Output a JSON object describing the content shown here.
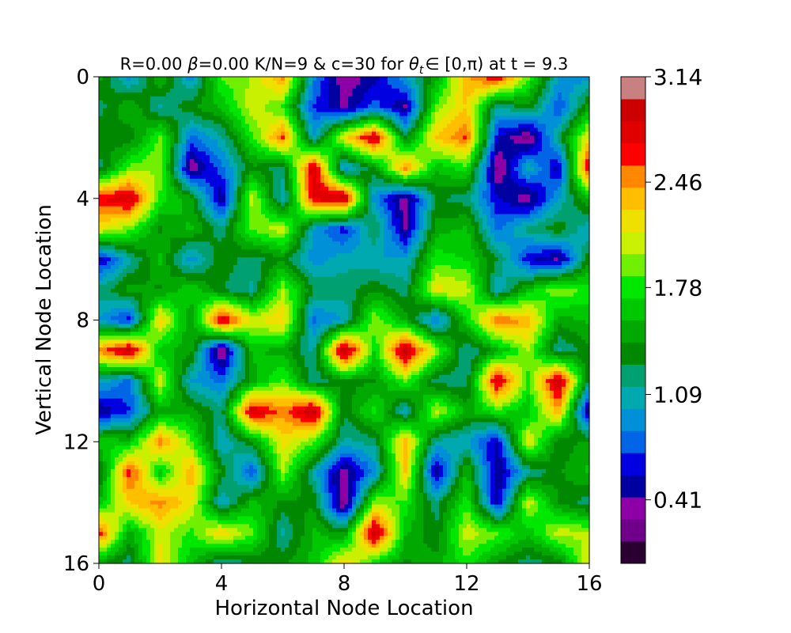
{
  "chart_data": {
    "type": "heatmap",
    "title": "R=0.00 β=0.00 K/N=9 & c=30 for θt ∈ [0,π) at t = 9.3",
    "title_parts": {
      "prefix": "R=0.00 ",
      "beta": "β",
      "middle": "=0.00 K/N=9 & c=30 for ",
      "theta": "θ",
      "theta_sub": "t",
      "suffix": "∈ [0,π) at t = 9.3"
    },
    "xlabel": "Horizontal Node Location",
    "ylabel": "Vertical Node Location",
    "xlim": [
      0,
      16
    ],
    "ylim": [
      16,
      0
    ],
    "xticks": [
      "0",
      "4",
      "8",
      "12",
      "16"
    ],
    "yticks": [
      "0",
      "4",
      "8",
      "12",
      "16"
    ],
    "colorbar": {
      "range": [
        0,
        3.14
      ],
      "ticks": [
        "0.41",
        "1.09",
        "1.78",
        "2.46",
        "3.14"
      ],
      "levels": [
        "#2a0030",
        "#6e008a",
        "#8c00a6",
        "#0000a0",
        "#0000e0",
        "#0066e6",
        "#0090d8",
        "#00a8b0",
        "#00a070",
        "#008800",
        "#00a800",
        "#00c800",
        "#00e800",
        "#70f000",
        "#c8f000",
        "#f0e000",
        "#ffbf00",
        "#ff8800",
        "#ff0000",
        "#e00000",
        "#cc0000",
        "#c88080"
      ]
    },
    "grid": {
      "size": 17,
      "values": [
        [
          1.5,
          0.9,
          1.6,
          0.9,
          1.9,
          2.0,
          2.5,
          0.9,
          0.3,
          0.5,
          1.0,
          1.5,
          2.4,
          2.8,
          1.9,
          1.0,
          0.9
        ],
        [
          1.2,
          1.6,
          1.1,
          1.4,
          1.6,
          2.1,
          1.8,
          0.7,
          0.4,
          0.8,
          0.4,
          1.9,
          2.3,
          1.1,
          1.4,
          0.7,
          1.5
        ],
        [
          1.4,
          1.3,
          1.9,
          0.8,
          1.1,
          1.8,
          2.6,
          1.0,
          2.2,
          2.9,
          1.3,
          2.3,
          2.6,
          0.6,
          0.2,
          1.2,
          2.2
        ],
        [
          1.2,
          1.9,
          2.0,
          0.3,
          0.8,
          1.4,
          1.2,
          2.9,
          0.9,
          1.4,
          2.5,
          1.6,
          1.8,
          0.2,
          1.1,
          0.5,
          2.9
        ],
        [
          2.7,
          2.9,
          1.8,
          1.5,
          0.4,
          2.1,
          1.0,
          2.8,
          3.0,
          0.9,
          0.3,
          1.3,
          1.2,
          0.6,
          0.3,
          1.0,
          1.6
        ],
        [
          2.2,
          1.9,
          1.4,
          1.6,
          1.2,
          1.9,
          2.1,
          1.0,
          0.6,
          1.3,
          0.4,
          1.5,
          1.6,
          0.8,
          1.2,
          1.4,
          1.0
        ],
        [
          0.5,
          1.1,
          1.6,
          0.9,
          1.4,
          1.2,
          1.4,
          0.9,
          1.1,
          1.0,
          1.0,
          1.8,
          1.7,
          1.3,
          0.6,
          0.4,
          1.4
        ],
        [
          1.2,
          1.5,
          1.4,
          1.7,
          1.3,
          1.1,
          2.0,
          1.3,
          1.2,
          1.4,
          1.2,
          2.2,
          2.1,
          1.0,
          1.6,
          2.0,
          1.8
        ],
        [
          1.0,
          0.6,
          2.3,
          1.4,
          2.9,
          2.1,
          2.3,
          0.8,
          1.0,
          2.0,
          1.5,
          0.8,
          1.7,
          2.6,
          2.4,
          1.5,
          1.6
        ],
        [
          2.5,
          3.0,
          1.6,
          1.5,
          0.2,
          1.6,
          1.5,
          1.1,
          3.1,
          1.7,
          3.0,
          2.0,
          1.1,
          1.5,
          2.0,
          1.1,
          1.4
        ],
        [
          1.1,
          0.8,
          2.1,
          1.0,
          0.8,
          1.5,
          1.9,
          1.2,
          1.4,
          1.4,
          1.9,
          1.2,
          1.2,
          2.9,
          1.8,
          3.0,
          1.2
        ],
        [
          0.4,
          0.7,
          1.5,
          1.5,
          1.2,
          2.9,
          2.5,
          3.0,
          1.3,
          1.8,
          1.0,
          2.1,
          1.5,
          1.8,
          1.6,
          2.4,
          0.3
        ],
        [
          1.7,
          1.6,
          2.5,
          1.9,
          1.0,
          1.4,
          2.2,
          1.9,
          1.1,
          1.2,
          2.4,
          1.1,
          1.0,
          0.5,
          2.2,
          1.3,
          1.5
        ],
        [
          1.2,
          2.7,
          1.6,
          2.4,
          1.4,
          0.7,
          2.0,
          1.1,
          0.3,
          0.9,
          2.3,
          0.4,
          1.6,
          0.4,
          1.1,
          1.4,
          1.6
        ],
        [
          1.6,
          2.3,
          2.5,
          2.2,
          1.0,
          1.6,
          1.4,
          1.4,
          0.2,
          2.0,
          1.8,
          1.2,
          1.8,
          0.5,
          2.1,
          1.4,
          1.2
        ],
        [
          2.7,
          1.5,
          2.1,
          1.8,
          2.3,
          1.9,
          1.1,
          1.6,
          1.4,
          3.0,
          1.6,
          1.3,
          2.1,
          1.9,
          1.6,
          2.1,
          2.0
        ],
        [
          1.4,
          1.2,
          2.2,
          1.6,
          1.1,
          1.3,
          1.4,
          1.6,
          2.3,
          1.7,
          1.4,
          1.5,
          1.8,
          1.4,
          1.2,
          1.3,
          2.2
        ]
      ]
    }
  }
}
